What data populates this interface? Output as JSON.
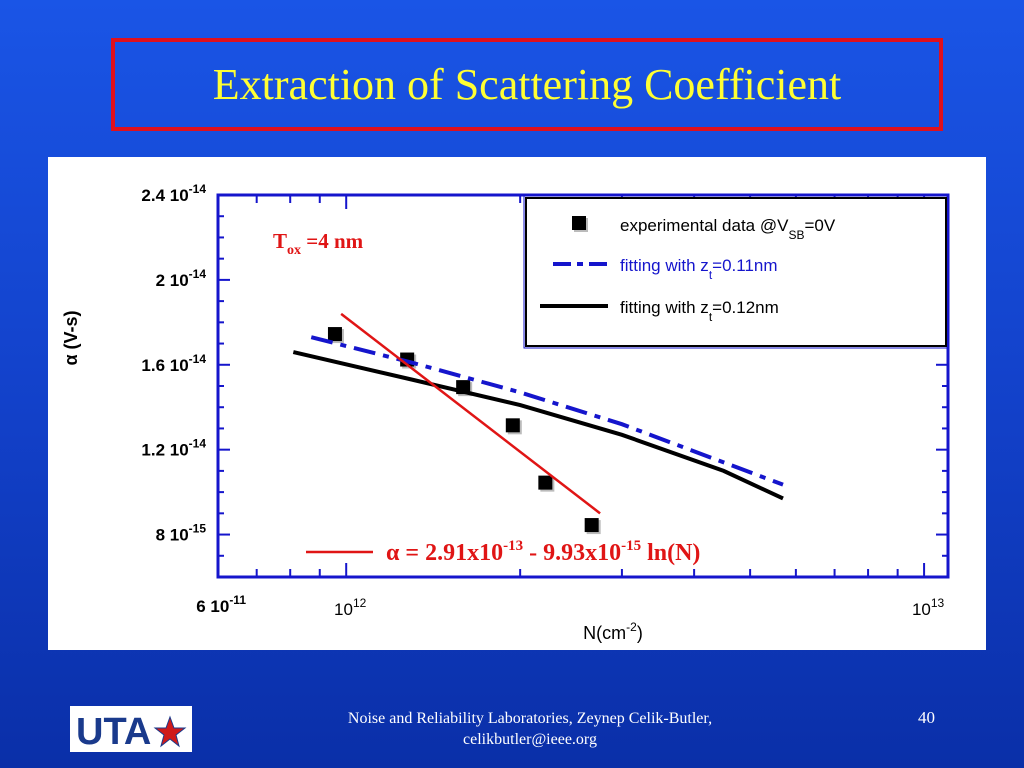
{
  "slide": {
    "title": "Extraction of Scattering Coefficient",
    "footer_line1": "Noise and Reliability Laboratories, Zeynep Celik-Butler,",
    "footer_line2": "celikbutler@ieee.org",
    "page_number": "40",
    "logo_text": "UTA"
  },
  "colors": {
    "background": "#1a55e6",
    "title_text": "#ffff33",
    "title_border": "#e0101c",
    "axis": "#1515cc",
    "experimental": "#000000",
    "fit_011": "#1515cc",
    "fit_012": "#000000",
    "linear_fit": "#e01515"
  },
  "chart_data": {
    "type": "scatter",
    "x_scale": "log",
    "xlim": [
      600000000000.0,
      11000000000000.0
    ],
    "ylim": [
      6e-15,
      2.4e-14
    ],
    "xlabel": "N(cm",
    "xlabel_sup": "-2",
    "xlabel_tail": ")",
    "ylabel": "α (V-s)",
    "y_ticks": [
      {
        "value": 2.4e-14,
        "mant": "2.4 10",
        "exp": "-14"
      },
      {
        "value": 2e-14,
        "mant": "2 10",
        "exp": "-14"
      },
      {
        "value": 1.6e-14,
        "mant": "1.6 10",
        "exp": "-14"
      },
      {
        "value": 1.2e-14,
        "mant": "1.2 10",
        "exp": "-14"
      },
      {
        "value": 8e-15,
        "mant": "8 10",
        "exp": "-15"
      }
    ],
    "origin_label": {
      "mant": "6 10",
      "exp": "-11"
    },
    "x_ticks": [
      {
        "value": 1000000000000.0,
        "mant": "10",
        "exp": "12"
      },
      {
        "value": 10000000000000.0,
        "mant": "10",
        "exp": "13"
      }
    ],
    "series": [
      {
        "name": "experimental data  @V",
        "name_sub": "SB",
        "name_tail": "=0V",
        "kind": "markers",
        "x": [
          960000000000.0,
          1280000000000.0,
          1600000000000.0,
          1950000000000.0,
          2220000000000.0,
          2670000000000.0
        ],
        "y": [
          1.74e-14,
          1.62e-14,
          1.49e-14,
          1.31e-14,
          1.04e-14,
          8.4e-15
        ]
      },
      {
        "name": "fitting with z",
        "name_sub": "t",
        "name_tail": "=0.11nm",
        "kind": "dash-dot",
        "x": [
          870000000000.0,
          1300000000000.0,
          2000000000000.0,
          3000000000000.0,
          4500000000000.0,
          5700000000000.0
        ],
        "y": [
          1.73e-14,
          1.61e-14,
          1.47e-14,
          1.32e-14,
          1.14e-14,
          1.035e-14
        ]
      },
      {
        "name": "fitting with z",
        "name_sub": "t",
        "name_tail": "=0.12nm",
        "kind": "solid",
        "x": [
          810000000000.0,
          1300000000000.0,
          2000000000000.0,
          3000000000000.0,
          4500000000000.0,
          5700000000000.0
        ],
        "y": [
          1.66e-14,
          1.53e-14,
          1.41e-14,
          1.27e-14,
          1.1e-14,
          9.7e-15
        ]
      },
      {
        "name": "linear fit",
        "kind": "red-line",
        "x": [
          980000000000.0,
          2750000000000.0
        ],
        "y": [
          1.84e-14,
          9e-15
        ]
      }
    ],
    "annotations": {
      "tox_T": "T",
      "tox_sub": "ox",
      "tox_tail": " =4 nm",
      "eq_alpha": "α",
      "eq_a": " = 2.91x10",
      "eq_exp1": "-13",
      "eq_b": " - 9.93x10",
      "eq_exp2": "-15",
      "eq_c": " ln(N)"
    }
  }
}
